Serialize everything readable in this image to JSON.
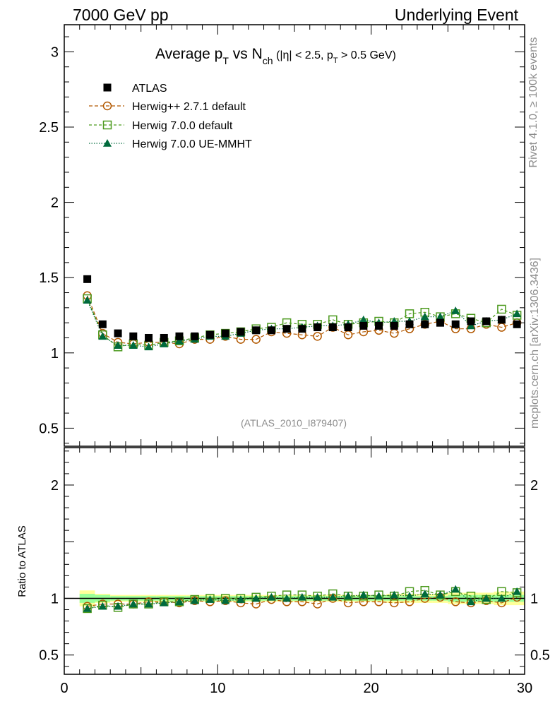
{
  "header": {
    "left": "7000 GeV pp",
    "right": "Underlying Event"
  },
  "side": {
    "rivet": "Rivet 4.1.0, ≥ 100k events",
    "mcplots": "mcplots.cern.ch [arXiv:1306.3436]"
  },
  "colors": {
    "atlas": "#000000",
    "herwigpp": "#b25800",
    "herwig7": "#4c9a1e",
    "herwig7ue": "#006a3c",
    "band_yellow": "#ffff99",
    "band_green": "#99ff99"
  },
  "chart_data": [
    {
      "type": "scatter",
      "title_parts": {
        "prefix": "Average p",
        "sub1": "T",
        "mid": " vs N",
        "sub2": "ch",
        "cut_a": " (|η| < 2.5, p",
        "sub3": "T",
        "cut_b": " > 0.5 GeV)"
      },
      "watermark": "(ATLAS_2010_I879407)",
      "xlim": [
        0,
        30
      ],
      "ylim": [
        0.38,
        3.18
      ],
      "yticks": [
        0.5,
        1,
        1.5,
        2,
        2.5,
        3
      ],
      "ytick_labels": [
        "0.5",
        "1",
        "1.5",
        "2",
        "2.5",
        "3"
      ],
      "x": [
        1.5,
        2.5,
        3.5,
        4.5,
        5.5,
        6.5,
        7.5,
        8.5,
        9.5,
        10.5,
        11.5,
        12.5,
        13.5,
        14.5,
        15.5,
        16.5,
        17.5,
        18.5,
        19.5,
        20.5,
        21.5,
        22.5,
        23.5,
        24.5,
        25.5,
        26.5,
        27.5,
        28.5,
        29.5
      ],
      "legend": [
        {
          "key": "atlas",
          "label": "ATLAS"
        },
        {
          "key": "herwigpp",
          "label": "Herwig++ 2.7.1 default"
        },
        {
          "key": "herwig7",
          "label": "Herwig 7.0.0 default"
        },
        {
          "key": "herwig7ue",
          "label": "Herwig 7.0.0 UE-MMHT"
        }
      ],
      "series": [
        {
          "key": "atlas",
          "name": "ATLAS",
          "marker": "filled-square",
          "values": [
            1.49,
            1.19,
            1.13,
            1.11,
            1.1,
            1.1,
            1.11,
            1.11,
            1.12,
            1.13,
            1.14,
            1.15,
            1.15,
            1.16,
            1.16,
            1.17,
            1.17,
            1.17,
            1.18,
            1.18,
            1.18,
            1.19,
            1.19,
            1.2,
            1.19,
            1.21,
            1.21,
            1.22,
            1.19
          ]
        },
        {
          "key": "herwigpp",
          "name": "Herwig++ 2.7.1 default",
          "marker": "open-circle",
          "values": [
            1.38,
            1.13,
            1.07,
            1.06,
            1.07,
            1.07,
            1.06,
            1.09,
            1.09,
            1.11,
            1.09,
            1.09,
            1.14,
            1.13,
            1.12,
            1.11,
            1.17,
            1.12,
            1.14,
            1.15,
            1.13,
            1.16,
            1.19,
            1.21,
            1.16,
            1.16,
            1.19,
            1.17,
            1.2
          ]
        },
        {
          "key": "herwig7",
          "name": "Herwig 7.0.0 default",
          "marker": "open-square",
          "values": [
            1.36,
            1.12,
            1.04,
            1.06,
            1.05,
            1.07,
            1.08,
            1.1,
            1.12,
            1.13,
            1.14,
            1.16,
            1.17,
            1.2,
            1.19,
            1.19,
            1.22,
            1.19,
            1.2,
            1.21,
            1.2,
            1.26,
            1.27,
            1.24,
            1.26,
            1.23,
            1.2,
            1.29,
            1.25
          ]
        },
        {
          "key": "herwig7ue",
          "name": "Herwig 7.0.0 UE-MMHT",
          "marker": "filled-triangle",
          "values": [
            1.35,
            1.11,
            1.05,
            1.05,
            1.04,
            1.06,
            1.08,
            1.09,
            1.11,
            1.11,
            1.13,
            1.15,
            1.16,
            1.16,
            1.17,
            1.18,
            1.18,
            1.19,
            1.22,
            1.2,
            1.21,
            1.21,
            1.24,
            1.24,
            1.28,
            1.18,
            1.21,
            1.22,
            1.26
          ]
        }
      ]
    },
    {
      "type": "scatter",
      "ylabel": "Ratio to ATLAS",
      "xlim": [
        0,
        30
      ],
      "ylim": [
        0.33,
        2.33
      ],
      "yticks": [
        0.5,
        1,
        2
      ],
      "ytick_labels": [
        "0.5",
        "1",
        "2"
      ],
      "xticks": [
        0,
        10,
        20,
        30
      ],
      "xtick_labels": [
        "0",
        "10",
        "20",
        "30"
      ],
      "band_yellow": [
        0.07,
        0.04,
        0.03,
        0.03,
        0.03,
        0.03,
        0.03,
        0.03,
        0.03,
        0.03,
        0.03,
        0.03,
        0.03,
        0.03,
        0.03,
        0.03,
        0.03,
        0.03,
        0.03,
        0.03,
        0.04,
        0.04,
        0.04,
        0.04,
        0.05,
        0.05,
        0.05,
        0.06,
        0.06
      ],
      "band_green": [
        0.04,
        0.03,
        0.02,
        0.02,
        0.02,
        0.02,
        0.02,
        0.02,
        0.02,
        0.02,
        0.02,
        0.02,
        0.02,
        0.02,
        0.02,
        0.02,
        0.02,
        0.02,
        0.02,
        0.02,
        0.02,
        0.02,
        0.02,
        0.02,
        0.03,
        0.03,
        0.03,
        0.03,
        0.03
      ],
      "series": [
        {
          "key": "herwigpp",
          "values": [
            0.93,
            0.95,
            0.95,
            0.95,
            0.97,
            0.97,
            0.96,
            0.98,
            0.97,
            0.98,
            0.96,
            0.95,
            0.99,
            0.97,
            0.97,
            0.95,
            1.0,
            0.96,
            0.97,
            0.97,
            0.96,
            0.97,
            1.0,
            1.01,
            0.97,
            0.96,
            0.98,
            0.96,
            1.01
          ]
        },
        {
          "key": "herwig7",
          "values": [
            0.91,
            0.94,
            0.92,
            0.95,
            0.95,
            0.97,
            0.97,
            0.99,
            1.0,
            1.0,
            1.0,
            1.01,
            1.02,
            1.03,
            1.03,
            1.02,
            1.04,
            1.02,
            1.02,
            1.03,
            1.02,
            1.06,
            1.07,
            1.03,
            1.06,
            1.02,
            0.99,
            1.06,
            1.05
          ]
        },
        {
          "key": "herwig7ue",
          "values": [
            0.91,
            0.93,
            0.93,
            0.95,
            0.95,
            0.96,
            0.97,
            0.98,
            0.99,
            0.98,
            0.99,
            1.0,
            1.01,
            1.0,
            1.01,
            1.01,
            1.01,
            1.02,
            1.03,
            1.02,
            1.03,
            1.02,
            1.04,
            1.03,
            1.08,
            0.97,
            1.0,
            1.0,
            1.06
          ]
        }
      ]
    }
  ]
}
